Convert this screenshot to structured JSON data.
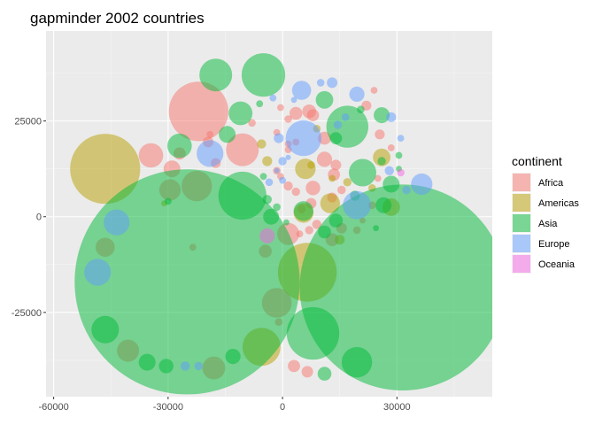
{
  "chart_data": {
    "type": "scatter",
    "title": "gapminder 2002 countries",
    "xlabel": "",
    "ylabel": "",
    "xlim": [
      -62000,
      55000
    ],
    "ylim": [
      -47000,
      48500
    ],
    "x_ticks": [
      -60000,
      -30000,
      0,
      30000
    ],
    "y_ticks": [
      -25000,
      0,
      25000
    ],
    "x_tick_labels": [
      "-60000",
      "-30000",
      "0",
      "30000"
    ],
    "y_tick_labels": [
      "-25000",
      "0",
      "25000"
    ],
    "grid": true,
    "legend_title": "continent",
    "legend_position": "right",
    "series": [
      {
        "name": "Africa",
        "color": "#F8766D",
        "points": [
          [
            -22000,
            27500,
            7800
          ],
          [
            -10500,
            17500,
            4300
          ],
          [
            -22500,
            8000,
            4000
          ],
          [
            -34500,
            16000,
            3200
          ],
          [
            -29500,
            7000,
            2800
          ],
          [
            -29000,
            12500,
            2200
          ],
          [
            -27000,
            16500,
            1600
          ],
          [
            -19500,
            19500,
            1400
          ],
          [
            -17500,
            14000,
            1300
          ],
          [
            -46500,
            -8000,
            2500
          ],
          [
            -40500,
            -35000,
            2900
          ],
          [
            -18000,
            -39500,
            3000
          ],
          [
            -1500,
            -22500,
            3900
          ],
          [
            1500,
            -4500,
            2900
          ],
          [
            -4500,
            -9000,
            1700
          ],
          [
            1500,
            8000,
            1200
          ],
          [
            3500,
            6500,
            1100
          ],
          [
            -1500,
            12000,
            1000
          ],
          [
            -500,
            10500,
            900
          ],
          [
            1500,
            17500,
            900
          ],
          [
            1500,
            19000,
            900
          ],
          [
            3500,
            19500,
            900
          ],
          [
            -1500,
            22000,
            900
          ],
          [
            1500,
            25500,
            1000
          ],
          [
            -500,
            28500,
            900
          ],
          [
            3500,
            27000,
            1700
          ],
          [
            7000,
            27500,
            1800
          ],
          [
            8000,
            26500,
            1600
          ],
          [
            11000,
            20500,
            1700
          ],
          [
            11000,
            15000,
            2000
          ],
          [
            14000,
            13500,
            1400
          ],
          [
            13500,
            11000,
            1600
          ],
          [
            8000,
            7500,
            1900
          ],
          [
            7500,
            3500,
            1400
          ],
          [
            5000,
            2000,
            1100
          ],
          [
            4500,
            -4500,
            900
          ],
          [
            7000,
            -3500,
            1100
          ],
          [
            9000,
            -2000,
            1200
          ],
          [
            13000,
            -6000,
            1700
          ],
          [
            13000,
            5000,
            1300
          ],
          [
            15500,
            7000,
            1100
          ],
          [
            15500,
            -3000,
            1400
          ],
          [
            19500,
            -3500,
            1000
          ],
          [
            21000,
            -1000,
            800
          ],
          [
            23500,
            3000,
            1000
          ],
          [
            25000,
            10000,
            900
          ],
          [
            25500,
            21500,
            1300
          ],
          [
            28500,
            18000,
            900
          ],
          [
            22000,
            29000,
            1300
          ],
          [
            24000,
            33000,
            900
          ],
          [
            3000,
            -39000,
            1600
          ],
          [
            6500,
            -40500,
            1500
          ],
          [
            -1000,
            -27500,
            1000
          ],
          [
            -23500,
            -8000,
            900
          ],
          [
            -19000,
            21500,
            900
          ],
          [
            -8000,
            24500,
            1000
          ]
        ]
      },
      {
        "name": "Americas",
        "color": "#B79F00",
        "points": [
          [
            -46500,
            12500,
            9200
          ],
          [
            6500,
            -14500,
            7700
          ],
          [
            -5500,
            -34000,
            5000
          ],
          [
            26000,
            15500,
            2300
          ],
          [
            28500,
            2500,
            2300
          ],
          [
            12500,
            3500,
            2600
          ],
          [
            6000,
            12500,
            2700
          ],
          [
            5500,
            1000,
            2600
          ],
          [
            -4000,
            14500,
            1300
          ],
          [
            -5500,
            19000,
            1200
          ],
          [
            15000,
            -6000,
            1300
          ],
          [
            7500,
            13500,
            1000
          ],
          [
            17000,
            9000,
            1100
          ],
          [
            23500,
            7500,
            1000
          ],
          [
            -31000,
            3500,
            800
          ],
          [
            9000,
            23000,
            1000
          ],
          [
            13000,
            10000,
            900
          ]
        ]
      },
      {
        "name": "Asia",
        "color": "#00BA38",
        "points": [
          [
            -25000,
            -17000,
            29500
          ],
          [
            31500,
            -18500,
            27000
          ],
          [
            -5000,
            37000,
            5700
          ],
          [
            17000,
            23500,
            5500
          ],
          [
            8000,
            -30500,
            6900
          ],
          [
            -10500,
            5500,
            6300
          ],
          [
            -17500,
            37000,
            4300
          ],
          [
            -27000,
            18500,
            3200
          ],
          [
            -11000,
            27000,
            3100
          ],
          [
            21000,
            11500,
            3600
          ],
          [
            19500,
            -38000,
            4000
          ],
          [
            -46500,
            -29500,
            3600
          ],
          [
            -14500,
            21500,
            2200
          ],
          [
            -35500,
            -38000,
            2200
          ],
          [
            -30500,
            -39000,
            1900
          ],
          [
            -13000,
            -36500,
            2000
          ],
          [
            -3000,
            0,
            2100
          ],
          [
            5500,
            1500,
            2600
          ],
          [
            11000,
            -4000,
            1700
          ],
          [
            14000,
            -1000,
            1800
          ],
          [
            26000,
            26500,
            2100
          ],
          [
            26500,
            3000,
            2100
          ],
          [
            28500,
            8500,
            2200
          ],
          [
            11000,
            30500,
            2300
          ],
          [
            11000,
            -41000,
            1800
          ],
          [
            14000,
            20500,
            1600
          ],
          [
            -4000,
            4500,
            1200
          ],
          [
            19000,
            5500,
            1300
          ],
          [
            20500,
            28000,
            1000
          ],
          [
            -6000,
            29500,
            900
          ],
          [
            26000,
            14500,
            1100
          ],
          [
            30500,
            12500,
            800
          ],
          [
            30500,
            16000,
            900
          ],
          [
            1000,
            -1500,
            800
          ],
          [
            -5000,
            10500,
            900
          ],
          [
            -1500,
            2500,
            1000
          ],
          [
            -30000,
            4000,
            900
          ],
          [
            24500,
            -3000,
            800
          ]
        ]
      },
      {
        "name": "Europe",
        "color": "#619CFF",
        "points": [
          [
            5500,
            20500,
            4700
          ],
          [
            -19000,
            16500,
            3500
          ],
          [
            -48500,
            -14500,
            3500
          ],
          [
            -43500,
            -1500,
            3400
          ],
          [
            19500,
            3000,
            3700
          ],
          [
            36500,
            8500,
            2800
          ],
          [
            5000,
            33000,
            2500
          ],
          [
            19500,
            32000,
            2000
          ],
          [
            -1000,
            20500,
            1300
          ],
          [
            -3500,
            9000,
            1000
          ],
          [
            -2500,
            31000,
            900
          ],
          [
            13000,
            35000,
            1400
          ],
          [
            14500,
            24000,
            1100
          ],
          [
            -25500,
            -39000,
            1200
          ],
          [
            -22000,
            -39000,
            1100
          ],
          [
            0,
            14500,
            1100
          ],
          [
            0,
            9500,
            900
          ],
          [
            28000,
            12000,
            1200
          ],
          [
            28500,
            26000,
            1300
          ],
          [
            32500,
            7000,
            1100
          ],
          [
            31000,
            20500,
            900
          ],
          [
            16500,
            26000,
            1000
          ],
          [
            10000,
            35000,
            1000
          ],
          [
            -1500,
            12000,
            700
          ],
          [
            1500,
            15500,
            700
          ],
          [
            3000,
            30500,
            800
          ]
        ]
      },
      {
        "name": "Oceania",
        "color": "#F564E3",
        "points": [
          [
            -4000,
            -5000,
            2000
          ],
          [
            31000,
            11500,
            1000
          ]
        ]
      }
    ]
  }
}
